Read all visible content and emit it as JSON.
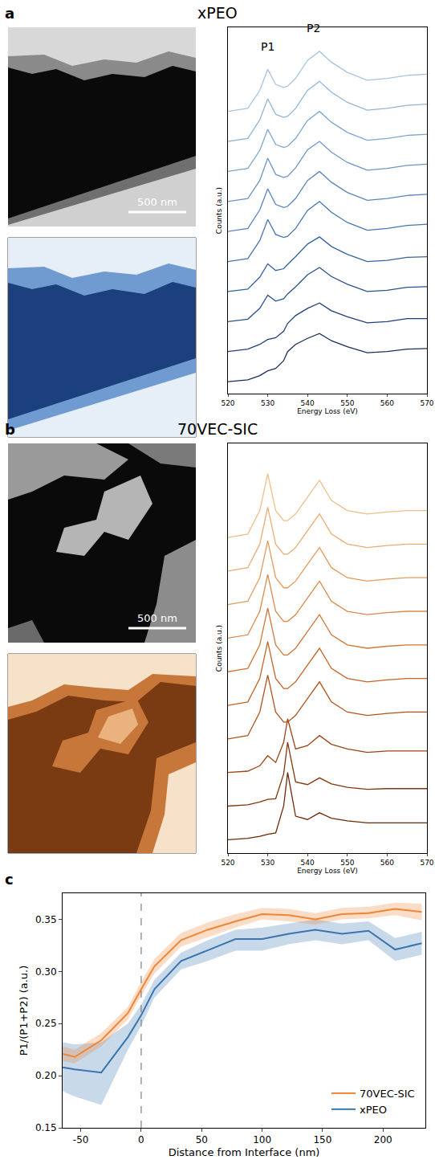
{
  "chart_data": [
    {
      "panel": "a",
      "title": "xPEO",
      "type": "line",
      "scale_bar": "500 nm",
      "x_label": "Energy Loss (eV)",
      "y_label": "Counts (a.u.)",
      "x": [
        520,
        525,
        528,
        530,
        532,
        534,
        535,
        537,
        540,
        543,
        546,
        550,
        555,
        560,
        565,
        570
      ],
      "series": [
        {
          "color": "#1a2f5e",
          "values": [
            0.0,
            0.03,
            0.1,
            0.18,
            0.22,
            0.35,
            0.5,
            0.62,
            0.72,
            0.8,
            0.68,
            0.58,
            0.48,
            0.5,
            0.54,
            0.55
          ]
        },
        {
          "color": "#21407a",
          "values": [
            0.5,
            0.54,
            0.62,
            0.7,
            0.73,
            0.84,
            0.97,
            1.1,
            1.22,
            1.31,
            1.18,
            1.08,
            0.98,
            1.0,
            1.05,
            1.05
          ]
        },
        {
          "color": "#2a5290",
          "values": [
            1.0,
            1.04,
            1.22,
            1.44,
            1.34,
            1.38,
            1.46,
            1.58,
            1.78,
            1.9,
            1.75,
            1.62,
            1.5,
            1.52,
            1.57,
            1.58
          ]
        },
        {
          "color": "#3563a3",
          "values": [
            1.5,
            1.54,
            1.74,
            1.96,
            1.85,
            1.88,
            1.95,
            2.08,
            2.29,
            2.41,
            2.25,
            2.12,
            2.0,
            2.02,
            2.07,
            2.08
          ]
        },
        {
          "color": "#4675b2",
          "values": [
            2.0,
            2.05,
            2.35,
            2.7,
            2.45,
            2.4,
            2.42,
            2.55,
            2.85,
            3.0,
            2.82,
            2.65,
            2.52,
            2.55,
            2.6,
            2.62
          ]
        },
        {
          "color": "#5886bd",
          "values": [
            2.5,
            2.55,
            2.86,
            3.21,
            2.95,
            2.9,
            2.92,
            3.05,
            3.35,
            3.5,
            3.32,
            3.15,
            3.02,
            3.05,
            3.1,
            3.12
          ]
        },
        {
          "color": "#6b96c6",
          "values": [
            3.0,
            3.05,
            3.35,
            3.72,
            3.45,
            3.4,
            3.42,
            3.56,
            3.86,
            4.0,
            3.82,
            3.65,
            3.52,
            3.55,
            3.6,
            3.62
          ]
        },
        {
          "color": "#7fa6cf",
          "values": [
            3.5,
            3.55,
            3.85,
            4.2,
            3.95,
            3.9,
            3.92,
            4.05,
            4.35,
            4.5,
            4.32,
            4.15,
            4.02,
            4.05,
            4.1,
            4.12
          ]
        },
        {
          "color": "#93b5d8",
          "values": [
            4.0,
            4.05,
            4.36,
            4.71,
            4.45,
            4.4,
            4.42,
            4.55,
            4.85,
            5.0,
            4.82,
            4.65,
            4.52,
            4.55,
            4.6,
            4.62
          ]
        },
        {
          "color": "#a7c4e0",
          "values": [
            4.5,
            4.55,
            4.85,
            5.2,
            4.95,
            4.9,
            4.92,
            5.05,
            5.35,
            5.5,
            5.32,
            5.15,
            5.02,
            5.05,
            5.1,
            5.12
          ]
        }
      ],
      "xlim": [
        520,
        570
      ],
      "xticks": [
        520,
        530,
        540,
        550,
        560,
        570
      ],
      "ylim": [
        -0.2,
        5.9
      ],
      "tick_labels": "x",
      "grid": false,
      "annotations": [
        {
          "text": "P1",
          "x": 530,
          "y": 5.45
        },
        {
          "text": "P2",
          "x": 541.5,
          "y": 5.75
        }
      ]
    },
    {
      "panel": "b",
      "title": "70VEC-SIC",
      "type": "line",
      "scale_bar": "500 nm",
      "x_label": "Energy Loss (eV)",
      "y_label": "Counts (a.u.)",
      "x": [
        520,
        525,
        528,
        530,
        532,
        534,
        535,
        537,
        540,
        543,
        546,
        550,
        555,
        560,
        565,
        570
      ],
      "series": [
        {
          "color": "#6e2a08",
          "values": [
            0.0,
            0.02,
            0.05,
            0.08,
            0.1,
            0.5,
            1.0,
            0.35,
            0.3,
            0.4,
            0.32,
            0.28,
            0.25,
            0.25,
            0.25,
            0.25
          ]
        },
        {
          "color": "#86360d",
          "values": [
            0.5,
            0.52,
            0.56,
            0.6,
            0.61,
            0.98,
            1.45,
            0.86,
            0.82,
            0.92,
            0.83,
            0.78,
            0.75,
            0.76,
            0.76,
            0.76
          ]
        },
        {
          "color": "#9d4414",
          "values": [
            1.0,
            1.02,
            1.1,
            1.25,
            1.15,
            1.45,
            1.8,
            1.35,
            1.4,
            1.55,
            1.42,
            1.35,
            1.3,
            1.32,
            1.32,
            1.32
          ]
        },
        {
          "color": "#b2531c",
          "values": [
            1.5,
            1.55,
            1.9,
            2.45,
            1.9,
            1.75,
            1.75,
            1.85,
            2.1,
            2.35,
            2.05,
            1.9,
            1.85,
            1.88,
            1.9,
            1.9
          ]
        },
        {
          "color": "#c46427",
          "values": [
            2.0,
            2.05,
            2.4,
            2.95,
            2.4,
            2.25,
            2.25,
            2.35,
            2.6,
            2.85,
            2.55,
            2.4,
            2.35,
            2.38,
            2.4,
            2.4
          ]
        },
        {
          "color": "#d27636",
          "values": [
            2.5,
            2.55,
            2.9,
            3.45,
            2.9,
            2.75,
            2.75,
            2.85,
            3.1,
            3.35,
            3.05,
            2.9,
            2.85,
            2.88,
            2.9,
            2.9
          ]
        },
        {
          "color": "#dc8948",
          "values": [
            3.0,
            3.05,
            3.4,
            3.95,
            3.4,
            3.25,
            3.25,
            3.35,
            3.6,
            3.85,
            3.55,
            3.4,
            3.35,
            3.38,
            3.4,
            3.4
          ]
        },
        {
          "color": "#e49b5c",
          "values": [
            3.5,
            3.55,
            3.9,
            4.45,
            3.9,
            3.75,
            3.75,
            3.85,
            4.1,
            4.35,
            4.05,
            3.9,
            3.85,
            3.88,
            3.9,
            3.9
          ]
        },
        {
          "color": "#eaad72",
          "values": [
            4.0,
            4.05,
            4.4,
            4.95,
            4.4,
            4.25,
            4.25,
            4.35,
            4.6,
            4.85,
            4.55,
            4.4,
            4.35,
            4.38,
            4.4,
            4.4
          ]
        },
        {
          "color": "#efbf8a",
          "values": [
            4.5,
            4.55,
            4.9,
            5.45,
            4.9,
            4.75,
            4.75,
            4.85,
            5.1,
            5.35,
            5.05,
            4.9,
            4.85,
            4.88,
            4.9,
            4.9
          ]
        }
      ],
      "xlim": [
        520,
        570
      ],
      "xticks": [
        520,
        530,
        540,
        550,
        560,
        570
      ],
      "ylim": [
        -0.2,
        5.9
      ],
      "tick_labels": "x",
      "grid": false
    },
    {
      "panel": "c",
      "type": "line",
      "x_label": "Distance from Interface (nm)",
      "y_label": "P1/(P1+P2) (a.u.)",
      "x": [
        -65,
        -55,
        -33,
        -11,
        0,
        11,
        33,
        55,
        78,
        100,
        122,
        144,
        166,
        188,
        210,
        232
      ],
      "series": [
        {
          "name": "xPEO",
          "color": "#3b75af",
          "values": [
            0.208,
            0.206,
            0.203,
            0.237,
            0.258,
            0.283,
            0.31,
            0.32,
            0.331,
            0.331,
            0.336,
            0.34,
            0.336,
            0.339,
            0.321,
            0.327
          ],
          "lower": [
            0.185,
            0.18,
            0.172,
            0.225,
            0.248,
            0.275,
            0.302,
            0.31,
            0.32,
            0.32,
            0.326,
            0.33,
            0.326,
            0.33,
            0.31,
            0.316
          ],
          "upper": [
            0.232,
            0.23,
            0.232,
            0.25,
            0.268,
            0.292,
            0.318,
            0.33,
            0.34,
            0.342,
            0.346,
            0.35,
            0.346,
            0.348,
            0.332,
            0.338
          ]
        },
        {
          "name": "70VEC-SIC",
          "color": "#ef8636",
          "values": [
            0.221,
            0.218,
            0.234,
            0.26,
            0.283,
            0.305,
            0.33,
            0.34,
            0.348,
            0.355,
            0.354,
            0.35,
            0.355,
            0.356,
            0.36,
            0.357
          ],
          "lower": [
            0.214,
            0.212,
            0.228,
            0.254,
            0.277,
            0.298,
            0.324,
            0.333,
            0.342,
            0.35,
            0.348,
            0.345,
            0.35,
            0.351,
            0.354,
            0.349
          ],
          "upper": [
            0.228,
            0.225,
            0.241,
            0.266,
            0.29,
            0.312,
            0.337,
            0.347,
            0.355,
            0.361,
            0.36,
            0.356,
            0.361,
            0.362,
            0.366,
            0.365
          ]
        }
      ],
      "xlim": [
        -65,
        235
      ],
      "xticks": [
        -50,
        0,
        50,
        100,
        150,
        200
      ],
      "ylim": [
        0.15,
        0.375
      ],
      "yticks": [
        0.15,
        {
          "value": 0.2,
          "label": "0.20"
        },
        0.25,
        {
          "value": 0.3,
          "label": "0.30"
        },
        0.35
      ],
      "reference_line_x": 0,
      "legend": "lower right",
      "grid": false
    }
  ]
}
